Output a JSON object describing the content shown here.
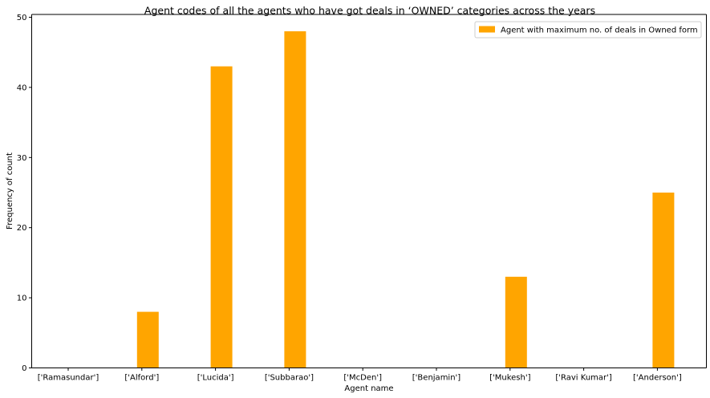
{
  "chart_data": {
    "type": "bar",
    "title": "Agent codes of all the agents who have got deals in ‘OWNED’ categories across the years",
    "xlabel": "Agent name",
    "ylabel": "Frequency of count",
    "categories": [
      "['Ramasundar']",
      "['Alford']",
      "['Lucida']",
      "['Subbarao']",
      "['McDen']",
      "['Benjamin']",
      "['Mukesh']",
      "['Ravi Kumar']",
      "['Anderson']"
    ],
    "series": [
      {
        "name": "Agent with maximum no. of deals in Owned form",
        "values": [
          0,
          8,
          43,
          48,
          0,
          0,
          13,
          0,
          25
        ],
        "color": "#ffa500"
      }
    ],
    "ylim": [
      0,
      50.4
    ],
    "yticks": [
      0,
      10,
      20,
      30,
      40,
      50
    ],
    "grid": false,
    "legend_position": "top-right"
  }
}
